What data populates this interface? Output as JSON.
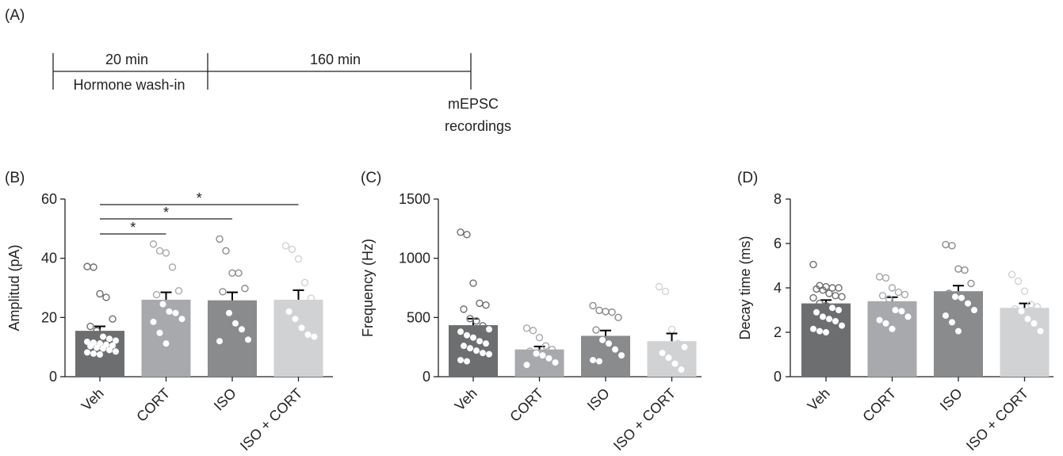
{
  "timeline": {
    "label": "(A)",
    "segments": [
      {
        "duration": "20 min",
        "caption": "Hormone wash-in"
      },
      {
        "duration": "160 min",
        "caption": ""
      }
    ],
    "end_caption_line1": "mEPSC",
    "end_caption_line2": "recordings"
  },
  "colors": {
    "Veh": "#6d6e70",
    "CORT": "#a7a9ac",
    "ISO": "#8a8b8d",
    "ISO + CORT": "#d1d2d4"
  },
  "chart_data": [
    {
      "type": "bar",
      "panel_label": "(B)",
      "ylabel": "Amplitud (pA)",
      "ylim": [
        0,
        60
      ],
      "yticks": [
        0,
        20,
        40,
        60
      ],
      "categories": [
        "Veh",
        "CORT",
        "ISO",
        "ISO + CORT"
      ],
      "values": [
        15.5,
        26,
        25.8,
        26
      ],
      "errors": [
        1.5,
        2.5,
        2.7,
        3.2
      ],
      "points": [
        [
          37.2,
          37,
          28,
          26.8,
          19.5,
          17,
          15.5,
          13.5,
          12.8,
          12.2,
          11.8,
          11.5,
          11.2,
          10.8,
          10.5,
          10.3,
          9.8,
          9.5,
          9,
          8.5,
          8.2,
          7.8,
          7.5
        ],
        [
          44.8,
          42.5,
          41.8,
          37,
          29,
          27.7,
          24.5,
          22,
          21.5,
          19.5,
          18.5,
          14.8,
          11.2
        ],
        [
          46.5,
          42.5,
          35,
          35,
          29.8,
          28.7,
          21.5,
          18,
          16,
          12.5,
          12
        ],
        [
          44.2,
          43,
          39.8,
          31.8,
          26.5,
          22,
          19.5,
          16.5,
          14.2,
          13.5
        ]
      ],
      "significance": [
        {
          "from": "Veh",
          "to": "ISO + CORT",
          "label": "*"
        },
        {
          "from": "Veh",
          "to": "ISO",
          "label": "*"
        },
        {
          "from": "Veh",
          "to": "CORT",
          "label": "*"
        }
      ]
    },
    {
      "type": "bar",
      "panel_label": "(C)",
      "ylabel": "Frequency (Hz)",
      "ylim": [
        0,
        1500
      ],
      "yticks": [
        0,
        500,
        1000,
        1500
      ],
      "categories": [
        "Veh",
        "CORT",
        "ISO",
        "ISO + CORT"
      ],
      "values": [
        435,
        230,
        345,
        300
      ],
      "errors": [
        55,
        25,
        45,
        65
      ],
      "points": [
        [
          1220,
          1200,
          790,
          620,
          605,
          570,
          490,
          470,
          430,
          400,
          380,
          350,
          330,
          300,
          280,
          260,
          240,
          220,
          200,
          190,
          140,
          130
        ],
        [
          410,
          390,
          330,
          260,
          230,
          215,
          195,
          180,
          155,
          120,
          100
        ],
        [
          600,
          560,
          550,
          545,
          500,
          395,
          310,
          280,
          230,
          180,
          140,
          130
        ],
        [
          760,
          720,
          400,
          280,
          250,
          200,
          160,
          110,
          60
        ]
      ],
      "significance": []
    },
    {
      "type": "bar",
      "panel_label": "(D)",
      "ylabel": "Decay time (ms)",
      "ylim": [
        0,
        8
      ],
      "yticks": [
        0,
        2,
        4,
        6,
        8
      ],
      "categories": [
        "Veh",
        "CORT",
        "ISO",
        "ISO + CORT"
      ],
      "values": [
        3.3,
        3.4,
        3.85,
        3.1
      ],
      "errors": [
        0.15,
        0.18,
        0.25,
        0.2
      ],
      "points": [
        [
          5.05,
          4.1,
          4.05,
          4.0,
          4.0,
          3.95,
          3.9,
          3.75,
          3.65,
          3.6,
          3.55,
          3.3,
          3.2,
          3.1,
          3.0,
          2.9,
          2.7,
          2.6,
          2.5,
          2.3,
          2.15,
          2.05,
          2.0
        ],
        [
          4.5,
          4.45,
          4.0,
          3.8,
          3.7,
          3.65,
          3.5,
          3.0,
          2.95,
          2.7,
          2.55,
          2.4,
          2.15
        ],
        [
          5.95,
          5.9,
          4.85,
          4.8,
          4.2,
          3.75,
          3.6,
          3.55,
          3.3,
          3.0,
          2.75,
          2.45,
          2.05
        ],
        [
          4.6,
          4.3,
          3.85,
          3.25,
          3.15,
          3.05,
          2.95,
          2.6,
          2.4,
          2.05
        ]
      ],
      "significance": []
    }
  ]
}
